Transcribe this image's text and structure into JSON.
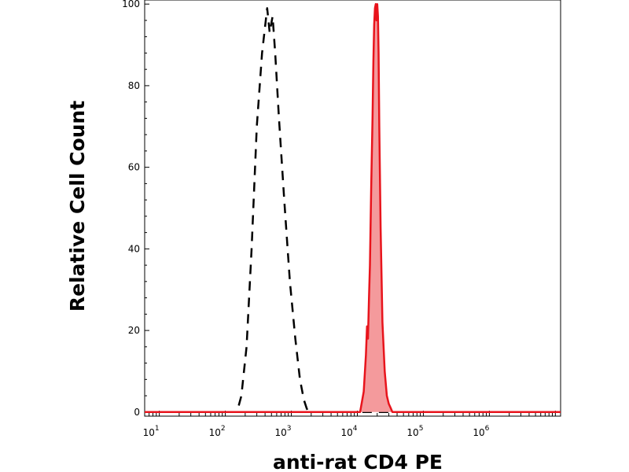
{
  "chart_data": {
    "type": "area",
    "title": "",
    "xlabel": "anti-rat CD4 PE",
    "ylabel": "Relative Cell Count",
    "x_scale": "log",
    "xlim": [
      6,
      12000000
    ],
    "ylim": [
      -1,
      101
    ],
    "grid": false,
    "legend": "none",
    "x_ticks": [
      {
        "base": "10",
        "exp": "1",
        "value": 10
      },
      {
        "base": "10",
        "exp": "2",
        "value": 100
      },
      {
        "base": "10",
        "exp": "3",
        "value": 1000
      },
      {
        "base": "10",
        "exp": "4",
        "value": 10000
      },
      {
        "base": "10",
        "exp": "5",
        "value": 100000
      },
      {
        "base": "10",
        "exp": "6",
        "value": 1000000
      }
    ],
    "y_ticks": [
      "0",
      "20",
      "40",
      "60",
      "80",
      "100"
    ],
    "y_tick_values": [
      0,
      20,
      40,
      60,
      80,
      100
    ],
    "series": [
      {
        "style": "dashed",
        "color": "#000000",
        "x": [
          6,
          150,
          175,
          210,
          250,
          300,
          360,
          430,
          470,
          520,
          570,
          650,
          780,
          950,
          1150,
          1350,
          1550,
          1700,
          1800,
          12000000
        ],
        "y": [
          0,
          0,
          4,
          16,
          40,
          70,
          88,
          99,
          93,
          97,
          88,
          72,
          52,
          32,
          18,
          8,
          3,
          1,
          0,
          0
        ]
      },
      {
        "style": "filled",
        "color": "#e8141c",
        "fill": "#f49a9c",
        "x": [
          6,
          11000,
          12500,
          13500,
          14000,
          14500,
          15000,
          15500,
          16200,
          17000,
          17500,
          18000,
          18500,
          19000,
          19500,
          20000,
          20500,
          21000,
          21500,
          22500,
          24000,
          26000,
          28000,
          30000,
          32000,
          34000,
          12000000
        ],
        "y": [
          0,
          0,
          5,
          14,
          21,
          18,
          28,
          36,
          55,
          72,
          86,
          95,
          99,
          100,
          96,
          100,
          97,
          88,
          70,
          45,
          22,
          10,
          4,
          2,
          1,
          0,
          0
        ]
      }
    ]
  }
}
